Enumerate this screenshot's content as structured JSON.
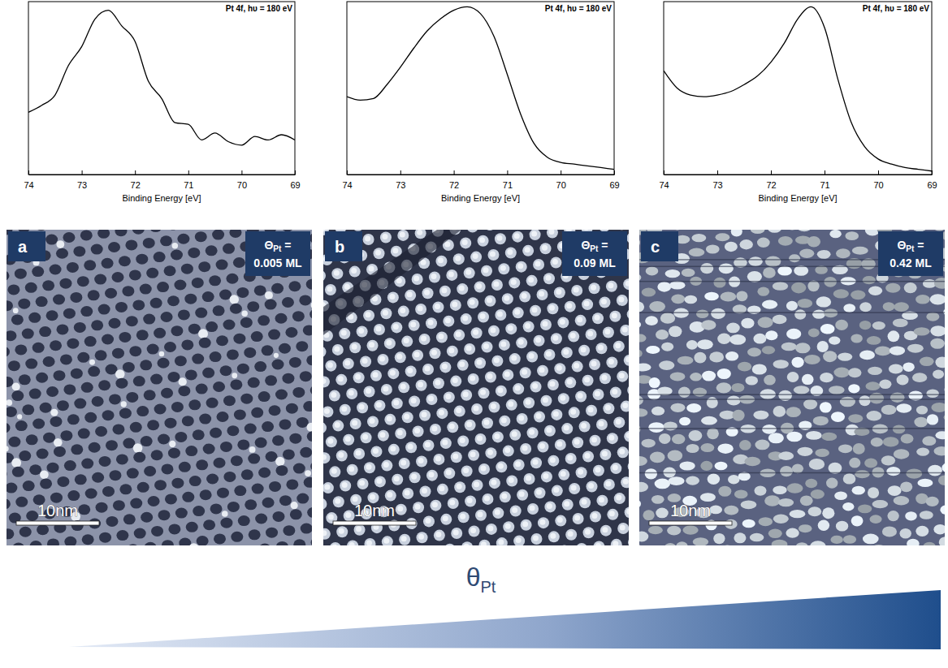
{
  "chart_data": [
    {
      "type": "line",
      "title": "Pt 4f, hυ = 180 eV",
      "x_label": "Binding Energy [eV]",
      "x": [
        74,
        73.75,
        73.5,
        73.25,
        73,
        72.75,
        72.5,
        72.25,
        72,
        71.75,
        71.5,
        71.25,
        71,
        70.75,
        70.5,
        70.25,
        70,
        69.75,
        69.5,
        69.25,
        69
      ],
      "series": [
        {
          "color": "#000000",
          "values": [
            0.36,
            0.4,
            0.46,
            0.63,
            0.74,
            0.9,
            0.95,
            0.86,
            0.77,
            0.54,
            0.44,
            0.3,
            0.29,
            0.2,
            0.24,
            0.19,
            0.17,
            0.22,
            0.2,
            0.23,
            0.2
          ]
        }
      ],
      "xlim": [
        74,
        69
      ],
      "xticks": [
        74,
        73,
        72,
        71,
        70,
        69
      ],
      "ylim": [
        0,
        1
      ],
      "tick_labels": "x"
    },
    {
      "type": "line",
      "title": "Pt 4f, hυ = 180 eV",
      "x_label": "Binding Energy [eV]",
      "x": [
        74,
        73.75,
        73.5,
        73.25,
        73,
        72.75,
        72.5,
        72.25,
        72,
        71.75,
        71.5,
        71.25,
        71,
        70.75,
        70.5,
        70.25,
        70,
        69.75,
        69.5,
        69.25,
        69
      ],
      "series": [
        {
          "color": "#000000",
          "values": [
            0.45,
            0.43,
            0.44,
            0.52,
            0.62,
            0.73,
            0.83,
            0.9,
            0.95,
            0.97,
            0.93,
            0.8,
            0.58,
            0.35,
            0.18,
            0.1,
            0.07,
            0.06,
            0.05,
            0.04,
            0.03
          ]
        }
      ],
      "xlim": [
        74,
        69
      ],
      "xticks": [
        74,
        73,
        72,
        71,
        70,
        69
      ],
      "ylim": [
        0,
        1
      ],
      "tick_labels": "x"
    },
    {
      "type": "line",
      "title": "Pt 4f, hυ = 180 eV",
      "x_label": "Binding Energy [eV]",
      "x": [
        74,
        73.75,
        73.5,
        73.25,
        73,
        72.75,
        72.5,
        72.25,
        72,
        71.75,
        71.5,
        71.25,
        71,
        70.75,
        70.5,
        70.25,
        70,
        69.75,
        69.5,
        69.25,
        69
      ],
      "series": [
        {
          "color": "#000000",
          "values": [
            0.6,
            0.5,
            0.46,
            0.45,
            0.46,
            0.48,
            0.52,
            0.57,
            0.65,
            0.76,
            0.9,
            0.97,
            0.85,
            0.55,
            0.3,
            0.16,
            0.09,
            0.06,
            0.04,
            0.03,
            0.02
          ]
        }
      ],
      "xlim": [
        74,
        69
      ],
      "xticks": [
        74,
        73,
        72,
        71,
        70,
        69
      ],
      "ylim": [
        0,
        1
      ],
      "tick_labels": "x"
    }
  ],
  "images": [
    {
      "letter": "a",
      "symbol": "Θ",
      "subscript": "Pt",
      "relation": "=",
      "coverage": 0.005,
      "unit": "ML",
      "scale_bar": "10nm"
    },
    {
      "letter": "b",
      "symbol": "Θ",
      "subscript": "Pt",
      "relation": "=",
      "coverage": 0.09,
      "unit": "ML",
      "scale_bar": "10nm"
    },
    {
      "letter": "c",
      "symbol": "Θ",
      "subscript": "Pt",
      "relation": "=",
      "coverage": 0.42,
      "unit": "ML",
      "scale_bar": "10nm"
    }
  ],
  "arrow_label": {
    "symbol": "θ",
    "subscript": "Pt"
  }
}
